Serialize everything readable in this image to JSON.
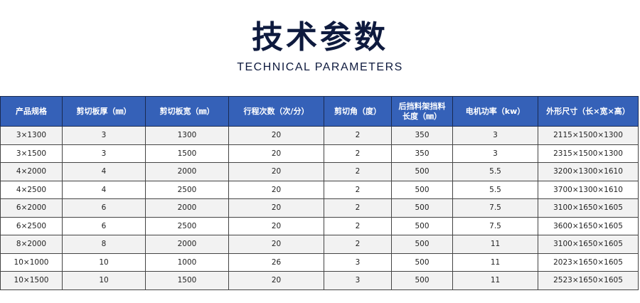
{
  "title": "技术参数",
  "subtitle": "TECHNICAL PARAMETERS",
  "table": {
    "headers": [
      "产品规格",
      "剪切板厚（㎜）",
      "剪切板宽（㎜）",
      "行程次数（次/分）",
      "剪切角（度）",
      "后挡料架挡料长度（㎜）",
      "电机功率（kw）",
      "外形尺寸（长×宽×高）"
    ],
    "rows": [
      [
        "3×1300",
        "3",
        "1300",
        "20",
        "2",
        "350",
        "3",
        "2115×1500×1300"
      ],
      [
        "3×1500",
        "3",
        "1500",
        "20",
        "2",
        "350",
        "3",
        "2315×1500×1300"
      ],
      [
        "4×2000",
        "4",
        "2000",
        "20",
        "2",
        "500",
        "5.5",
        "3200×1300×1610"
      ],
      [
        "4×2500",
        "4",
        "2500",
        "20",
        "2",
        "500",
        "5.5",
        "3700×1300×1610"
      ],
      [
        "6×2000",
        "6",
        "2000",
        "20",
        "2",
        "500",
        "7.5",
        "3100×1650×1605"
      ],
      [
        "6×2500",
        "6",
        "2500",
        "20",
        "2",
        "500",
        "7.5",
        "3600×1650×1605"
      ],
      [
        "8×2000",
        "8",
        "2000",
        "20",
        "2",
        "500",
        "11",
        "3100×1650×1605"
      ],
      [
        "10×1000",
        "10",
        "1000",
        "26",
        "3",
        "500",
        "11",
        "2023×1650×1605"
      ],
      [
        "10×1500",
        "10",
        "1500",
        "20",
        "3",
        "500",
        "11",
        "2523×1650×1605"
      ]
    ]
  },
  "colors": {
    "header_bg": "#3561b8",
    "title": "#0e1a3e"
  }
}
